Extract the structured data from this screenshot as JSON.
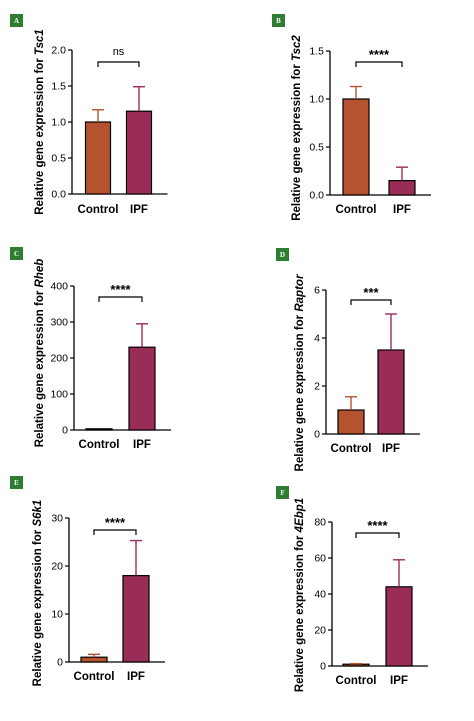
{
  "colors": {
    "control": "#b5532f",
    "ipf": "#9a2c58",
    "axis": "#000000",
    "badge": "#2e7d32"
  },
  "chart_data": [
    {
      "panel": "A",
      "type": "bar",
      "ylabel_prefix": "Relative gene expression for ",
      "gene": "Tsc1",
      "categories": [
        "Control",
        "IPF"
      ],
      "values": [
        1.0,
        1.15
      ],
      "errors": [
        0.17,
        0.34
      ],
      "ylim": [
        0,
        2.0
      ],
      "yticks": [
        "0.0",
        "0.5",
        "1.0",
        "1.5",
        "2.0"
      ],
      "significance": "ns"
    },
    {
      "panel": "B",
      "type": "bar",
      "ylabel_prefix": "Relative gene expression for ",
      "gene": "Tsc2",
      "categories": [
        "Control",
        "IPF"
      ],
      "values": [
        1.0,
        0.15
      ],
      "errors": [
        0.13,
        0.14
      ],
      "ylim": [
        0,
        1.5
      ],
      "yticks": [
        "0.0",
        "0.5",
        "1.0",
        "1.5"
      ],
      "significance": "****"
    },
    {
      "panel": "C",
      "type": "bar",
      "ylabel_prefix": "Relative gene expression for ",
      "gene": "Rheb",
      "categories": [
        "Control",
        "IPF"
      ],
      "values": [
        1,
        230
      ],
      "errors": [
        0,
        65
      ],
      "ylim": [
        0,
        400
      ],
      "yticks": [
        "0",
        "100",
        "200",
        "300",
        "400"
      ],
      "significance": "****"
    },
    {
      "panel": "D",
      "type": "bar",
      "ylabel_prefix": "Relative gene expression for ",
      "gene": "Raptor",
      "categories": [
        "Control",
        "IPF"
      ],
      "values": [
        1.0,
        3.5
      ],
      "errors": [
        0.55,
        1.5
      ],
      "ylim": [
        0,
        6
      ],
      "yticks": [
        "0",
        "2",
        "4",
        "6"
      ],
      "significance": "***"
    },
    {
      "panel": "E",
      "type": "bar",
      "ylabel_prefix": "Relative gene expression for ",
      "gene": "S6k1",
      "categories": [
        "Control",
        "IPF"
      ],
      "values": [
        1.0,
        18.0
      ],
      "errors": [
        0.6,
        7.3
      ],
      "ylim": [
        0,
        30
      ],
      "yticks": [
        "0",
        "10",
        "20",
        "30"
      ],
      "significance": "****"
    },
    {
      "panel": "F",
      "type": "bar",
      "ylabel_prefix": "Relative gene expression for ",
      "gene": "4Ebp1",
      "categories": [
        "Control",
        "IPF"
      ],
      "values": [
        1.0,
        44.0
      ],
      "errors": [
        0.3,
        15.0
      ],
      "ylim": [
        0,
        80
      ],
      "yticks": [
        "0",
        "20",
        "40",
        "60",
        "80"
      ],
      "significance": "****"
    }
  ]
}
